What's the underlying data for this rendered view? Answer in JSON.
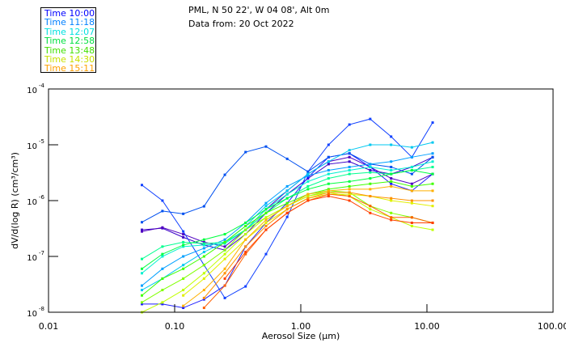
{
  "header": {
    "location": "PML, N 50 22', W 04 08', Alt 0m",
    "date": "Data from: 20 Oct 2022"
  },
  "chart_data": {
    "type": "line",
    "title": "PML, N 50 22', W 04 08', Alt 0m",
    "xlabel": "Aerosol Size (µm)",
    "ylabel": "dV/d(log R) (cm³/cm³)",
    "xscale": "log",
    "yscale": "log",
    "xlim": [
      0.01,
      100
    ],
    "ylim": [
      1e-08,
      0.0001
    ],
    "xticks": [
      "0.01",
      "0.10",
      "1.00",
      "10.00",
      "100.00"
    ],
    "yticks": [
      {
        "base": "10",
        "exp": "-4"
      },
      {
        "base": "10",
        "exp": "-5"
      },
      {
        "base": "10",
        "exp": "-6"
      },
      {
        "base": "10",
        "exp": "-7"
      },
      {
        "base": "10",
        "exp": "-8"
      }
    ],
    "legend_position": "top-left, outside",
    "legend": [
      {
        "label": "Time 10:00",
        "color": "#0000ff"
      },
      {
        "label": "Time 11:18",
        "color": "#0080ff"
      },
      {
        "label": "Time 12:07",
        "color": "#00e0e0"
      },
      {
        "label": "Time 12:58",
        "color": "#00e040"
      },
      {
        "label": "Time 13:48",
        "color": "#40e000"
      },
      {
        "label": "Time 14:30",
        "color": "#c8e000"
      },
      {
        "label": "Time 15:11",
        "color": "#ffa000"
      }
    ],
    "x": [
      0.055,
      0.08,
      0.117,
      0.171,
      0.25,
      0.365,
      0.53,
      0.78,
      1.14,
      1.66,
      2.43,
      3.55,
      5.2,
      7.6,
      11.1
    ],
    "series": [
      {
        "color": "#3a00c8",
        "values": [
          3e-07,
          3.2e-07,
          2.2e-07,
          1.6e-07,
          1.3e-07,
          2.5e-07,
          6e-07,
          1.3e-06,
          2.5e-06,
          4.5e-06,
          5e-06,
          3.5e-06,
          3e-06,
          4e-06,
          6e-06
        ]
      },
      {
        "color": "#5000c0",
        "values": [
          2.8e-07,
          3.3e-07,
          2.5e-07,
          1.8e-07,
          1.5e-07,
          3e-07,
          7e-07,
          1.5e-06,
          3e-06,
          5e-06,
          6e-06,
          4e-06,
          2.5e-06,
          2e-06,
          3e-06
        ]
      },
      {
        "color": "#1f1fff",
        "values": [
          1.4e-08,
          1.4e-08,
          1.2e-08,
          1.7e-08,
          3e-08,
          1.5e-07,
          4e-07,
          9e-07,
          2.6e-06,
          6e-06,
          7e-06,
          4e-06,
          2e-06,
          1.5e-06,
          3e-06
        ]
      },
      {
        "color": "#1040ff",
        "values": [
          1.9e-06,
          1e-06,
          2.8e-07,
          7e-08,
          1.8e-08,
          2.9e-08,
          1.1e-07,
          5.1e-07,
          3.3e-06,
          1e-05,
          2.3e-05,
          2.9e-05,
          1.4e-05,
          6e-06,
          2.5e-05
        ]
      },
      {
        "color": "#0050f0",
        "values": [
          4.1e-07,
          6.5e-07,
          5.8e-07,
          7.9e-07,
          2.9e-06,
          7.4e-06,
          9.3e-06,
          5.6e-06,
          3.3e-06,
          6e-06,
          7e-06,
          4.5e-06,
          4e-06,
          3e-06,
          6e-06
        ]
      },
      {
        "color": "#00a0ff",
        "values": [
          3e-08,
          6e-08,
          1e-07,
          1.4e-07,
          2e-07,
          4e-07,
          9e-07,
          1.8e-06,
          2.8e-06,
          3.5e-06,
          4e-06,
          4.5e-06,
          5e-06,
          6e-06,
          7e-06
        ]
      },
      {
        "color": "#00c8f0",
        "values": [
          2.5e-08,
          4e-08,
          7e-08,
          1.2e-07,
          1.8e-07,
          3.5e-07,
          8e-07,
          1.5e-06,
          3e-06,
          5e-06,
          8e-06,
          1e-05,
          1e-05,
          9e-06,
          1.1e-05
        ]
      },
      {
        "color": "#00f0d0",
        "values": [
          5e-08,
          1e-07,
          1.5e-07,
          1.6e-07,
          1.7e-07,
          3e-07,
          7e-07,
          1.3e-06,
          2.2e-06,
          3e-06,
          3.5e-06,
          4e-06,
          3.5e-06,
          4e-06,
          5e-06
        ]
      },
      {
        "color": "#00ff90",
        "values": [
          9e-08,
          1.5e-07,
          1.8e-07,
          1.7e-07,
          1.8e-07,
          3e-07,
          6e-07,
          1.1e-06,
          1.8e-06,
          2.5e-06,
          3e-06,
          3.2e-06,
          3e-06,
          3.5e-06,
          4e-06
        ]
      },
      {
        "color": "#00ff40",
        "values": [
          6e-08,
          1.1e-07,
          1.6e-07,
          2e-07,
          2.5e-07,
          4e-07,
          7e-07,
          1.1e-06,
          1.6e-06,
          2e-06,
          2.2e-06,
          2.5e-06,
          3e-06,
          3.5e-06,
          3e-06
        ]
      },
      {
        "color": "#40ff00",
        "values": [
          2e-08,
          4e-08,
          6e-08,
          1e-07,
          1.8e-07,
          3.5e-07,
          6e-07,
          9e-07,
          1.3e-06,
          1.6e-06,
          1.8e-06,
          2e-06,
          2.2e-06,
          1.8e-06,
          2e-06
        ]
      },
      {
        "color": "#80ff00",
        "values": [
          1.5e-08,
          2.5e-08,
          4e-08,
          7e-08,
          1.3e-07,
          3e-07,
          5e-07,
          8e-07,
          1.2e-06,
          1.5e-06,
          1.4e-06,
          8e-07,
          6e-07,
          5e-07,
          4e-07
        ]
      },
      {
        "color": "#c0ff00",
        "values": [
          1e-08,
          1.5e-08,
          2.5e-08,
          5e-08,
          1.1e-07,
          2.5e-07,
          5e-07,
          8e-07,
          1.2e-06,
          1.4e-06,
          1.2e-06,
          7e-07,
          5e-07,
          3.5e-07,
          3e-07
        ]
      },
      {
        "color": "#e0f000",
        "values": [
          null,
          null,
          2e-08,
          4e-08,
          9e-08,
          2e-07,
          4e-07,
          7e-07,
          1.1e-06,
          1.3e-06,
          1.3e-06,
          1.2e-06,
          1e-06,
          9e-07,
          8e-07
        ]
      },
      {
        "color": "#ffb000",
        "values": [
          null,
          null,
          1.3e-08,
          2.5e-08,
          6e-08,
          2e-07,
          4.5e-07,
          8e-07,
          1.3e-06,
          1.5e-06,
          1.6e-06,
          1.6e-06,
          1.8e-06,
          1.5e-06,
          1.5e-06
        ]
      },
      {
        "color": "#ff9000",
        "values": [
          null,
          null,
          null,
          1.8e-08,
          5e-08,
          1.5e-07,
          3.5e-07,
          7e-07,
          1.1e-06,
          1.4e-06,
          1.4e-06,
          1.2e-06,
          1.1e-06,
          1e-06,
          1e-06
        ]
      },
      {
        "color": "#ff6000",
        "values": [
          null,
          null,
          null,
          1.2e-08,
          3e-08,
          1.1e-07,
          3e-07,
          6e-07,
          1e-06,
          1.3e-06,
          1.2e-06,
          8e-07,
          5e-07,
          5e-07,
          4e-07
        ]
      },
      {
        "color": "#ff4000",
        "values": [
          null,
          null,
          null,
          null,
          4e-08,
          1.2e-07,
          3e-07,
          6e-07,
          1e-06,
          1.2e-06,
          1e-06,
          6e-07,
          4.5e-07,
          4e-07,
          4e-07
        ]
      }
    ]
  }
}
